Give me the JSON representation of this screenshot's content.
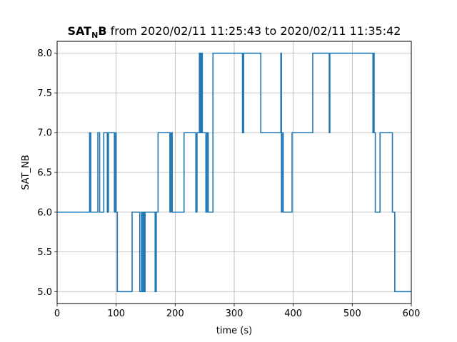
{
  "chart_data": {
    "type": "line",
    "step": "post",
    "title_main": "SAT",
    "title_sub": "N",
    "title_bold_end": "B",
    "title_rest": " from 2020/02/11 11:25:43 to 2020/02/11 11:35:42",
    "xlabel": "time (s)",
    "ylabel": "SAT_NB",
    "xlim": [
      0,
      600
    ],
    "ylim": [
      4.85,
      8.15
    ],
    "grid": true,
    "x_ticks": [
      0,
      100,
      200,
      300,
      400,
      500,
      600
    ],
    "x_tick_labels": [
      "0",
      "100",
      "200",
      "300",
      "400",
      "500",
      "600"
    ],
    "y_ticks": [
      5.0,
      5.5,
      6.0,
      6.5,
      7.0,
      7.5,
      8.0
    ],
    "y_tick_labels": [
      "5.0",
      "5.5",
      "6.0",
      "6.5",
      "7.0",
      "7.5",
      "8.0"
    ],
    "line_color": "#1f77b4",
    "series": [
      {
        "x": [
          0,
          55,
          57,
          69,
          72,
          79,
          85,
          87,
          97,
          98,
          100,
          102,
          127,
          140,
          143,
          144,
          146,
          148,
          149,
          151,
          166,
          168,
          171,
          191,
          193,
          195,
          215,
          235,
          237,
          241,
          242,
          243,
          244,
          245,
          246,
          252,
          254,
          256,
          264,
          314,
          316,
          345,
          379,
          380,
          381,
          383,
          398,
          433,
          461,
          462,
          535,
          536,
          537,
          539,
          547,
          568,
          572,
          600
        ],
        "y": [
          6,
          7,
          6,
          7,
          6,
          7,
          6,
          7,
          6,
          7,
          6,
          5,
          6,
          5,
          6,
          5,
          6,
          5,
          6,
          6,
          5,
          6,
          7,
          6,
          7,
          6,
          7,
          6,
          7,
          8,
          7,
          8,
          7,
          8,
          7,
          6,
          7,
          6,
          8,
          7,
          8,
          7,
          8,
          6,
          7,
          6,
          7,
          8,
          7,
          8,
          7,
          8,
          7,
          6,
          7,
          6,
          5,
          5
        ]
      }
    ]
  }
}
